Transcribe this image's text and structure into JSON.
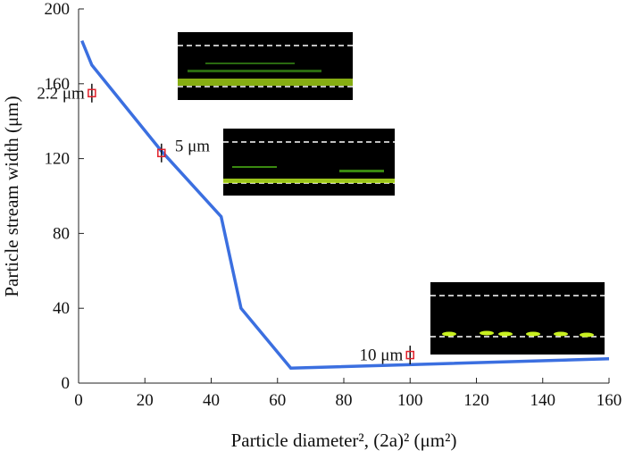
{
  "chart_data": {
    "type": "line",
    "y_label": "Particle stream width (μm)",
    "x_label": "Particle diameter², (2a)² (μm²)",
    "xlim": [
      0,
      160
    ],
    "xticks": [
      0,
      20,
      40,
      60,
      80,
      100,
      120,
      140,
      160
    ],
    "ylim": [
      0,
      200
    ],
    "yticks": [
      0,
      40,
      80,
      120,
      160,
      200
    ],
    "line": {
      "color": "#3b6fe0",
      "x": [
        1,
        4,
        25,
        43,
        49,
        64,
        160
      ],
      "y": [
        183,
        170,
        124,
        89,
        40,
        8,
        13
      ]
    },
    "points": {
      "color": "#e0202a",
      "x": [
        4,
        25,
        100
      ],
      "y": [
        155,
        123,
        15
      ],
      "error": [
        5,
        5,
        5
      ],
      "labels": [
        "2.2 μm",
        "5 μm",
        "10 μm"
      ]
    }
  }
}
